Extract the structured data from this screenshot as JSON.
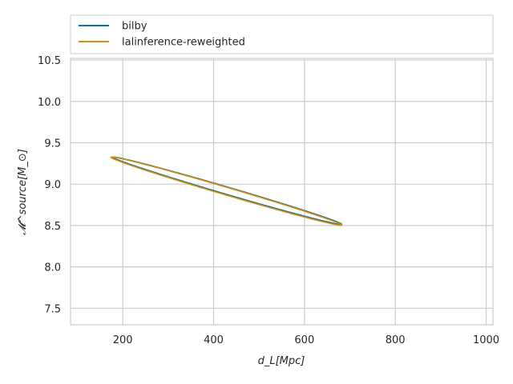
{
  "chart_data": {
    "type": "line",
    "title": "",
    "xlabel": "d_L[Mpc]",
    "ylabel": "𝓜^source[M_⊙]",
    "xlim": [
      85,
      1015
    ],
    "ylim": [
      7.3,
      10.52
    ],
    "xticks": [
      200,
      400,
      600,
      800,
      1000
    ],
    "yticks": [
      7.5,
      8.0,
      8.5,
      9.0,
      9.5,
      10.0,
      10.5
    ],
    "xtick_labels": [
      "200",
      "400",
      "600",
      "800",
      "1000"
    ],
    "ytick_labels": [
      "7.5",
      "8.0",
      "8.5",
      "9.0",
      "9.5",
      "10.0",
      "10.5"
    ],
    "grid": true,
    "legend_position": "top (above plot)",
    "series": [
      {
        "name": "bilby",
        "color": "#0173b2",
        "contour_ellipse": {
          "center_x": 430,
          "center_y": 8.92,
          "semi_major_x": 252,
          "semi_major_y": -0.405,
          "semi_minor_x": 1.6,
          "semi_minor_y": 0.046
        }
      },
      {
        "name": "lalinference-reweighted",
        "color": "#de8f05",
        "contour_ellipse": {
          "center_x": 428,
          "center_y": 8.915,
          "semi_major_x": 254,
          "semi_major_y": -0.41,
          "semi_minor_x": 1.6,
          "semi_minor_y": 0.048
        }
      }
    ]
  }
}
